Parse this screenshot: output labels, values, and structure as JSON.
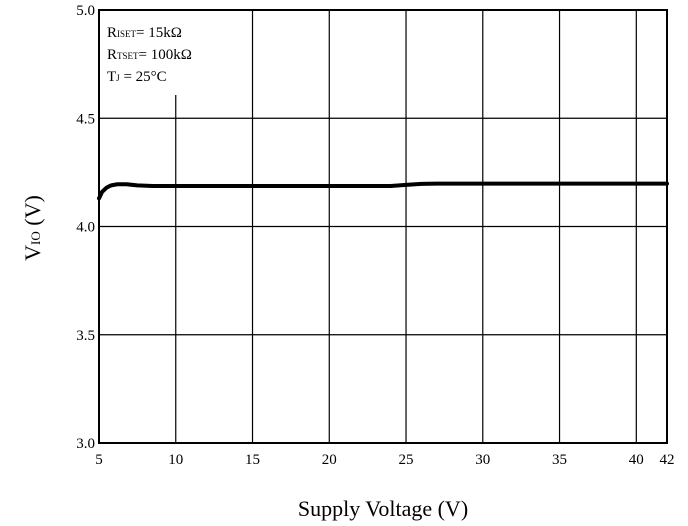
{
  "chart_data": {
    "type": "line",
    "title": "",
    "xlabel": "Supply Voltage (V)",
    "ylabel": {
      "main": "V",
      "sub": "IO",
      "rest": " (V)"
    },
    "xlim": [
      5,
      42
    ],
    "ylim": [
      3.0,
      5.0
    ],
    "grid": true,
    "x_ticks": [
      {
        "value": 5,
        "label": "5"
      },
      {
        "value": 10,
        "label": "10"
      },
      {
        "value": 15,
        "label": "15"
      },
      {
        "value": 20,
        "label": "20"
      },
      {
        "value": 25,
        "label": "25"
      },
      {
        "value": 30,
        "label": "30"
      },
      {
        "value": 35,
        "label": "35"
      },
      {
        "value": 40,
        "label": "40"
      },
      {
        "value": 42,
        "label": "42"
      }
    ],
    "y_ticks": [
      {
        "value": 3.0,
        "label": "3.0"
      },
      {
        "value": 3.5,
        "label": "3.5"
      },
      {
        "value": 4.0,
        "label": "4.0"
      },
      {
        "value": 4.5,
        "label": "4.5"
      },
      {
        "value": 5.0,
        "label": "5.0"
      }
    ],
    "annotations": [
      {
        "main": "R",
        "sub": "ISET",
        "rest": "= 15kΩ"
      },
      {
        "main": "R",
        "sub": "TSET",
        "rest": "= 100kΩ"
      },
      {
        "main": "T",
        "sub": "J",
        "rest": " = 25°C"
      }
    ],
    "series": [
      {
        "color": "#000000",
        "x": [
          5.0,
          5.2,
          5.5,
          5.8,
          6.2,
          6.8,
          7.5,
          8.5,
          10,
          15,
          20,
          24,
          25,
          26,
          27,
          30,
          35,
          40,
          42
        ],
        "y": [
          4.13,
          4.16,
          4.18,
          4.19,
          4.195,
          4.195,
          4.19,
          4.187,
          4.187,
          4.187,
          4.187,
          4.187,
          4.192,
          4.197,
          4.198,
          4.198,
          4.198,
          4.198,
          4.198
        ]
      }
    ]
  }
}
